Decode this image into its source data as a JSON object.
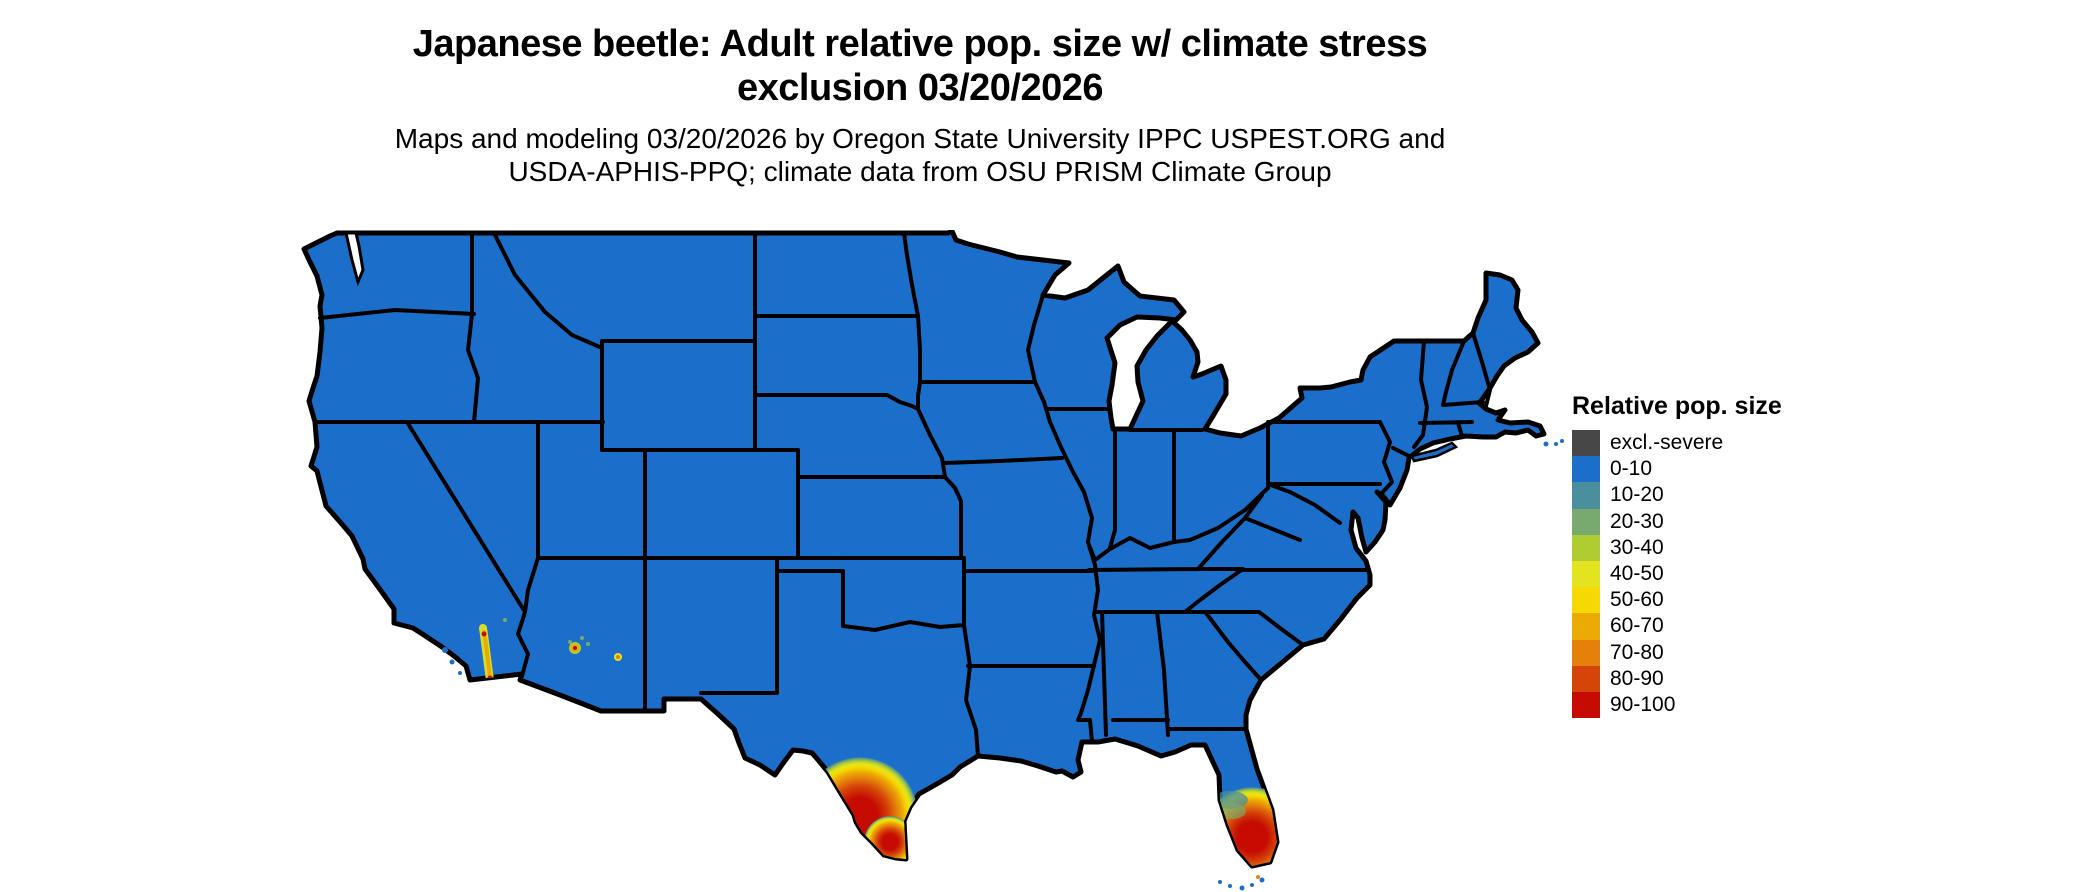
{
  "title": {
    "line1": "Japanese beetle: Adult relative pop. size w/ climate stress",
    "line2": "exclusion 03/20/2026"
  },
  "subtitle": {
    "line1": "Maps and modeling 03/20/2026 by Oregon State University IPPC USPEST.ORG and",
    "line2": "USDA-APHIS-PPQ; climate data from OSU PRISM Climate Group"
  },
  "legend": {
    "title": "Relative pop. size",
    "items": [
      {
        "label": "excl.-severe",
        "color": "#474747"
      },
      {
        "label": "0-10",
        "color": "#1c6ecb"
      },
      {
        "label": "10-20",
        "color": "#4a8f9d"
      },
      {
        "label": "20-30",
        "color": "#78a96e"
      },
      {
        "label": "30-40",
        "color": "#b0cc33"
      },
      {
        "label": "40-50",
        "color": "#e3e41f"
      },
      {
        "label": "50-60",
        "color": "#f6d900"
      },
      {
        "label": "60-70",
        "color": "#ecab03"
      },
      {
        "label": "70-80",
        "color": "#e5800a"
      },
      {
        "label": "80-90",
        "color": "#d54408"
      },
      {
        "label": "90-100",
        "color": "#c50b02"
      }
    ]
  },
  "map": {
    "region": "Contiguous United States",
    "background_color": "#ffffff",
    "border_color": "#000000",
    "base_class": "0-10",
    "base_color": "#1c6ecb",
    "hotspots": [
      {
        "name": "south-texas",
        "location": "Lower Rio Grande Valley, south Texas",
        "classes_shown": "10-20 through 90-100"
      },
      {
        "name": "south-florida",
        "location": "Southern Florida peninsula",
        "classes_shown": "10-20 through 90-100"
      },
      {
        "name": "southern-california",
        "location": "Inland Southern California strip",
        "classes_shown": "40-50 through 90-100"
      },
      {
        "name": "southwest-arizona",
        "location": "Southwestern Arizona specks",
        "classes_shown": "20-30 through 90-100"
      }
    ]
  }
}
